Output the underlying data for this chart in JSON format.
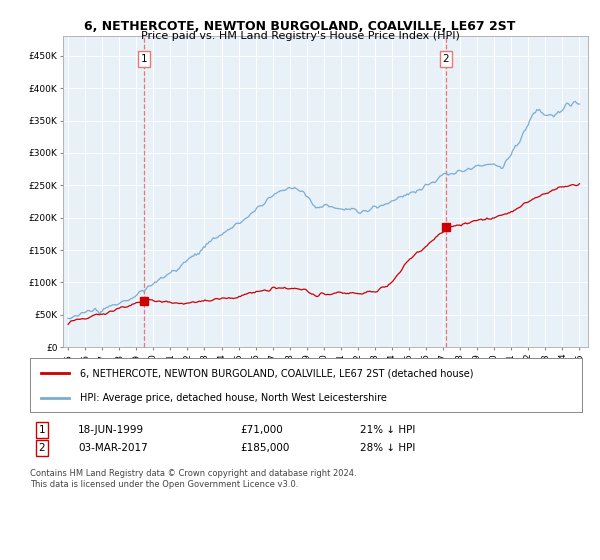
{
  "title": "6, NETHERCOTE, NEWTON BURGOLAND, COALVILLE, LE67 2ST",
  "subtitle": "Price paid vs. HM Land Registry's House Price Index (HPI)",
  "legend_line1": "6, NETHERCOTE, NEWTON BURGOLAND, COALVILLE, LE67 2ST (detached house)",
  "legend_line2": "HPI: Average price, detached house, North West Leicestershire",
  "annotation1_date": "18-JUN-1999",
  "annotation1_price": "£71,000",
  "annotation1_hpi": "21% ↓ HPI",
  "annotation1_year": 1999.46,
  "annotation1_value": 71000,
  "annotation2_date": "03-MAR-2017",
  "annotation2_price": "£185,000",
  "annotation2_hpi": "28% ↓ HPI",
  "annotation2_year": 2017.17,
  "annotation2_value": 185000,
  "hpi_color": "#7aadd4",
  "price_color": "#cc0000",
  "vline_color": "#e87878",
  "footer": "Contains HM Land Registry data © Crown copyright and database right 2024.\nThis data is licensed under the Open Government Licence v3.0.",
  "ylim": [
    0,
    480000
  ],
  "xlim_start": 1994.7,
  "xlim_end": 2025.5,
  "plot_bg": "#e8f0f8",
  "grid_color": "#ffffff"
}
